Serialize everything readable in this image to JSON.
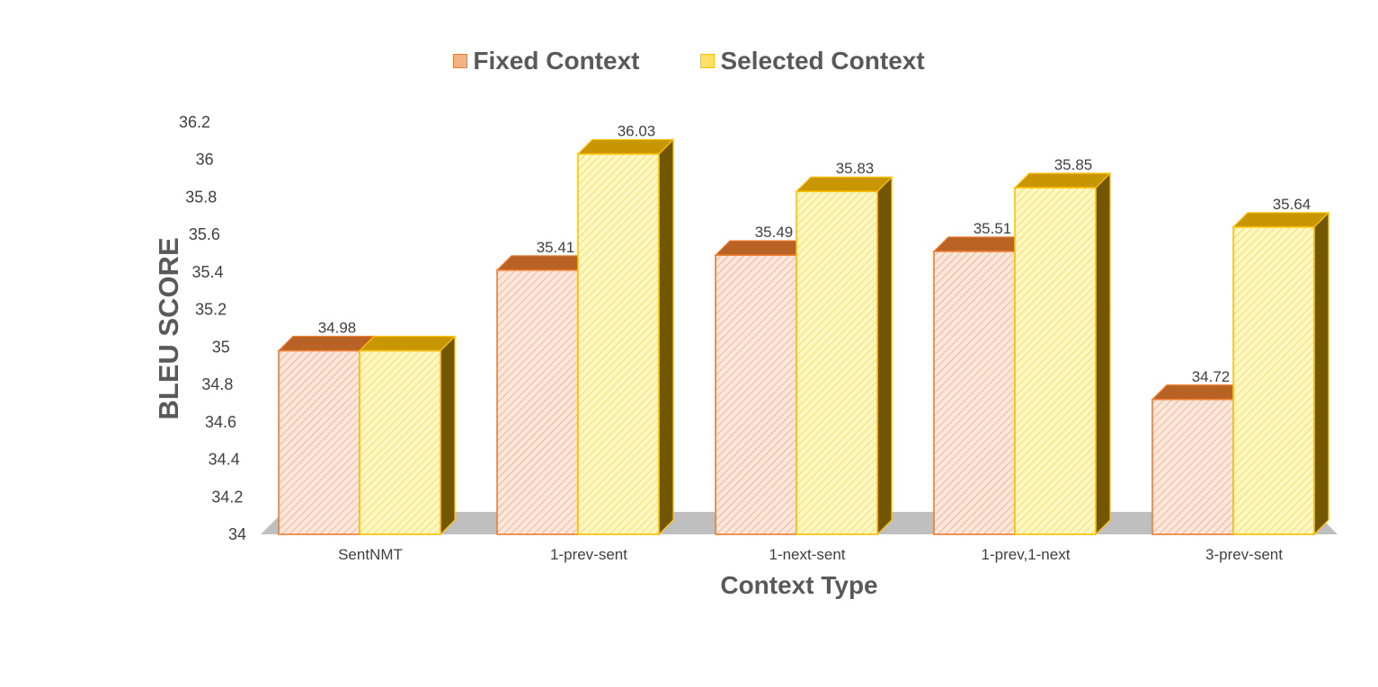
{
  "chart_data": {
    "type": "bar",
    "title": "",
    "xlabel": "Context Type",
    "ylabel": "BLEU SCORE",
    "categories": [
      "SentNMT",
      "1-prev-sent",
      "1-next-sent",
      "1-prev,1-next",
      "3-prev-sent"
    ],
    "series": [
      {
        "name": "Fixed Context",
        "values": [
          34.98,
          35.41,
          35.49,
          35.51,
          34.72
        ],
        "color": "#ED7D31",
        "fill": "#FBE0D4"
      },
      {
        "name": "Selected Context",
        "values": [
          34.98,
          36.03,
          35.83,
          35.85,
          35.64
        ],
        "color": "#FFC000",
        "fill": "#FFF4B8"
      }
    ],
    "data_labels": [
      [
        "34.98",
        "",
        "35.41",
        "36.03",
        "35.49",
        "35.83",
        "35.51",
        "35.85",
        "34.72",
        "35.64"
      ]
    ],
    "ylim": [
      34,
      36.2
    ],
    "yticks": [
      "34",
      "34.2",
      "34.4",
      "34.6",
      "34.8",
      "35",
      "35.2",
      "35.4",
      "35.6",
      "35.8",
      "36",
      "36.2"
    ],
    "legend_position": "top",
    "grid": false,
    "style": "3d-clustered-column"
  }
}
